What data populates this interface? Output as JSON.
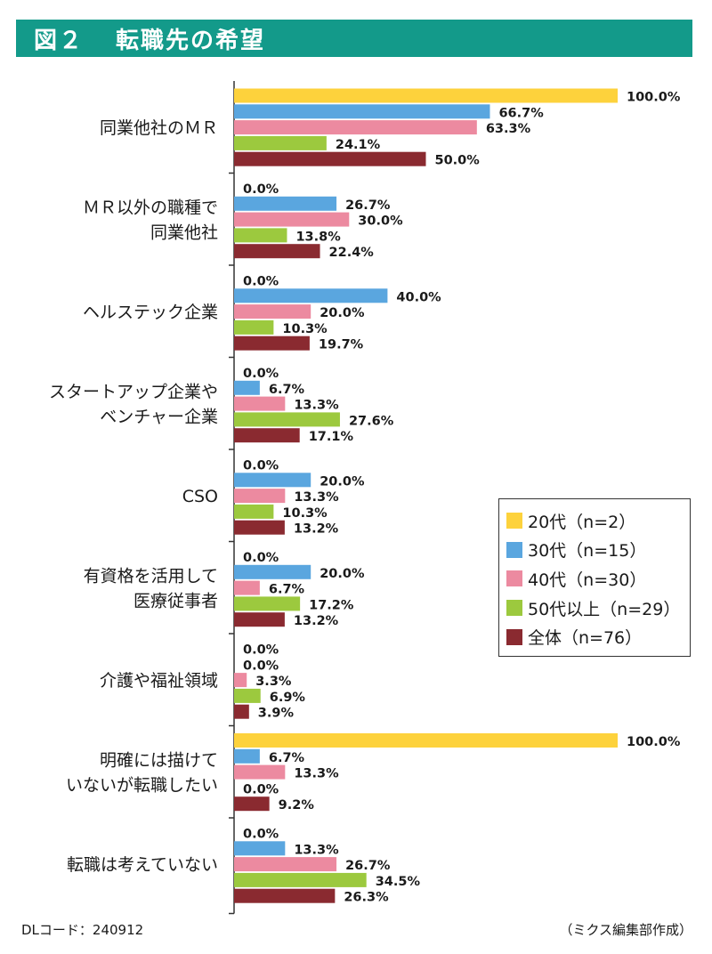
{
  "header": {
    "figure_number": "図２",
    "title": "転職先の希望"
  },
  "legend": {
    "items": [
      "20代（n=2）",
      "30代（n=15）",
      "40代（n=30）",
      "50代以上（n=29）",
      "全体（n=76）"
    ]
  },
  "colors": {
    "series_20s": "#fdd23c",
    "series_30s": "#5aa6df",
    "series_40s": "#ec8aa0",
    "series_50s": "#9cc93e",
    "series_all": "#8a2a30"
  },
  "footer": {
    "code": "DLコード：240912",
    "source": "（ミクス編集部作成）"
  },
  "chart_data": {
    "type": "bar",
    "orientation": "horizontal",
    "categories": [
      [
        "同業他社のＭＲ"
      ],
      [
        "ＭＲ以外の職種で",
        "同業他社"
      ],
      [
        "ヘルステック企業"
      ],
      [
        "スタートアップ企業や",
        "ベンチャー企業"
      ],
      [
        "CSO"
      ],
      [
        "有資格を活用して",
        "医療従事者"
      ],
      [
        "介護や福祉領域"
      ],
      [
        "明確には描けて",
        "いないが転職したい"
      ],
      [
        "転職は考えていない"
      ]
    ],
    "series": [
      {
        "name": "20代（n=2）",
        "values": [
          100.0,
          0.0,
          0.0,
          0.0,
          0.0,
          0.0,
          0.0,
          100.0,
          0.0
        ],
        "labels": [
          "100.0%",
          "0.0%",
          "0.0%",
          "0.0%",
          "0.0%",
          "0.0%",
          "0.0%",
          "100.0%",
          "0.0%"
        ]
      },
      {
        "name": "30代（n=15）",
        "values": [
          66.7,
          26.7,
          40.0,
          6.7,
          20.0,
          20.0,
          0.0,
          6.7,
          13.3
        ],
        "labels": [
          "66.7%",
          "26.7%",
          "40.0%",
          "6.7%",
          "20.0%",
          "20.0%",
          "0.0%",
          "6.7%",
          "13.3%"
        ]
      },
      {
        "name": "40代（n=30）",
        "values": [
          63.3,
          30.0,
          20.0,
          13.3,
          13.3,
          6.7,
          3.3,
          13.3,
          26.7
        ],
        "labels": [
          "63.3%",
          "30.0%",
          "20.0%",
          "13.3%",
          "13.3%",
          "6.7%",
          "3.3%",
          "13.3%",
          "26.7%"
        ]
      },
      {
        "name": "50代以上（n=29）",
        "values": [
          24.1,
          13.8,
          10.3,
          27.6,
          10.3,
          17.2,
          6.9,
          0.0,
          34.5
        ],
        "labels": [
          "24.1%",
          "13.8%",
          "10.3%",
          "27.6%",
          "10.3%",
          "17.2%",
          "6.9%",
          "0.0%",
          "34.5%"
        ]
      },
      {
        "name": "全体（n=76）",
        "values": [
          50.0,
          22.4,
          19.7,
          17.1,
          13.2,
          13.2,
          3.9,
          9.2,
          26.3
        ],
        "labels": [
          "50.0%",
          "22.4%",
          "19.7%",
          "17.1%",
          "13.2%",
          "13.2%",
          "3.9%",
          "9.2%",
          "26.3%"
        ]
      }
    ],
    "xlim": [
      0,
      100
    ],
    "grid": false,
    "legend_position": "right"
  }
}
